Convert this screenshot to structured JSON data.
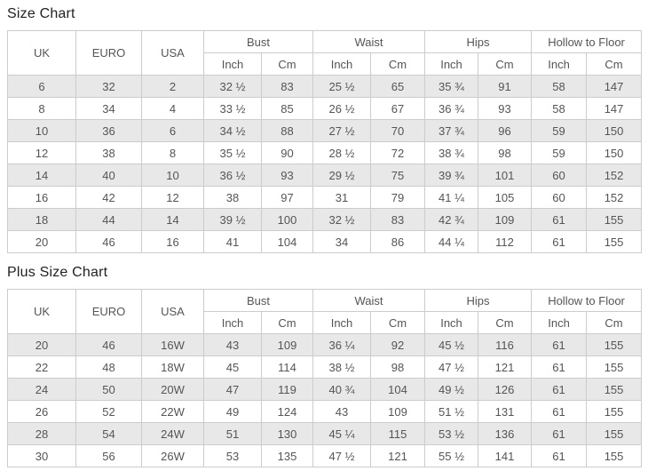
{
  "colors": {
    "border": "#cccccc",
    "stripe_row_bg": "#e8e8e8",
    "header_bg": "#ffffff",
    "cell_text": "#555555",
    "title_text": "#222222"
  },
  "tables": [
    {
      "title": "Size Chart",
      "columns": [
        "UK",
        "EURO",
        "USA"
      ],
      "groups": [
        {
          "label": "Bust",
          "subcolumns": [
            "Inch",
            "Cm"
          ]
        },
        {
          "label": "Waist",
          "subcolumns": [
            "Inch",
            "Cm"
          ]
        },
        {
          "label": "Hips",
          "subcolumns": [
            "Inch",
            "Cm"
          ]
        },
        {
          "label": "Hollow to Floor",
          "subcolumns": [
            "Inch",
            "Cm"
          ]
        }
      ],
      "rows": [
        [
          "6",
          "32",
          "2",
          "32 ½",
          "83",
          "25 ½",
          "65",
          "35 ¾",
          "91",
          "58",
          "147"
        ],
        [
          "8",
          "34",
          "4",
          "33 ½",
          "85",
          "26 ½",
          "67",
          "36 ¾",
          "93",
          "58",
          "147"
        ],
        [
          "10",
          "36",
          "6",
          "34 ½",
          "88",
          "27 ½",
          "70",
          "37 ¾",
          "96",
          "59",
          "150"
        ],
        [
          "12",
          "38",
          "8",
          "35 ½",
          "90",
          "28 ½",
          "72",
          "38 ¾",
          "98",
          "59",
          "150"
        ],
        [
          "14",
          "40",
          "10",
          "36 ½",
          "93",
          "29 ½",
          "75",
          "39 ¾",
          "101",
          "60",
          "152"
        ],
        [
          "16",
          "42",
          "12",
          "38",
          "97",
          "31",
          "79",
          "41 ¼",
          "105",
          "60",
          "152"
        ],
        [
          "18",
          "44",
          "14",
          "39 ½",
          "100",
          "32 ½",
          "83",
          "42 ¾",
          "109",
          "61",
          "155"
        ],
        [
          "20",
          "46",
          "16",
          "41",
          "104",
          "34",
          "86",
          "44 ¼",
          "112",
          "61",
          "155"
        ]
      ]
    },
    {
      "title": "Plus Size Chart",
      "columns": [
        "UK",
        "EURO",
        "USA"
      ],
      "groups": [
        {
          "label": "Bust",
          "subcolumns": [
            "Inch",
            "Cm"
          ]
        },
        {
          "label": "Waist",
          "subcolumns": [
            "Inch",
            "Cm"
          ]
        },
        {
          "label": "Hips",
          "subcolumns": [
            "Inch",
            "Cm"
          ]
        },
        {
          "label": "Hollow to Floor",
          "subcolumns": [
            "Inch",
            "Cm"
          ]
        }
      ],
      "rows": [
        [
          "20",
          "46",
          "16W",
          "43",
          "109",
          "36 ¼",
          "92",
          "45 ½",
          "116",
          "61",
          "155"
        ],
        [
          "22",
          "48",
          "18W",
          "45",
          "114",
          "38 ½",
          "98",
          "47 ½",
          "121",
          "61",
          "155"
        ],
        [
          "24",
          "50",
          "20W",
          "47",
          "119",
          "40 ¾",
          "104",
          "49 ½",
          "126",
          "61",
          "155"
        ],
        [
          "26",
          "52",
          "22W",
          "49",
          "124",
          "43",
          "109",
          "51 ½",
          "131",
          "61",
          "155"
        ],
        [
          "28",
          "54",
          "24W",
          "51",
          "130",
          "45 ¼",
          "115",
          "53 ½",
          "136",
          "61",
          "155"
        ],
        [
          "30",
          "56",
          "26W",
          "53",
          "135",
          "47 ½",
          "121",
          "55 ½",
          "141",
          "61",
          "155"
        ]
      ]
    }
  ]
}
